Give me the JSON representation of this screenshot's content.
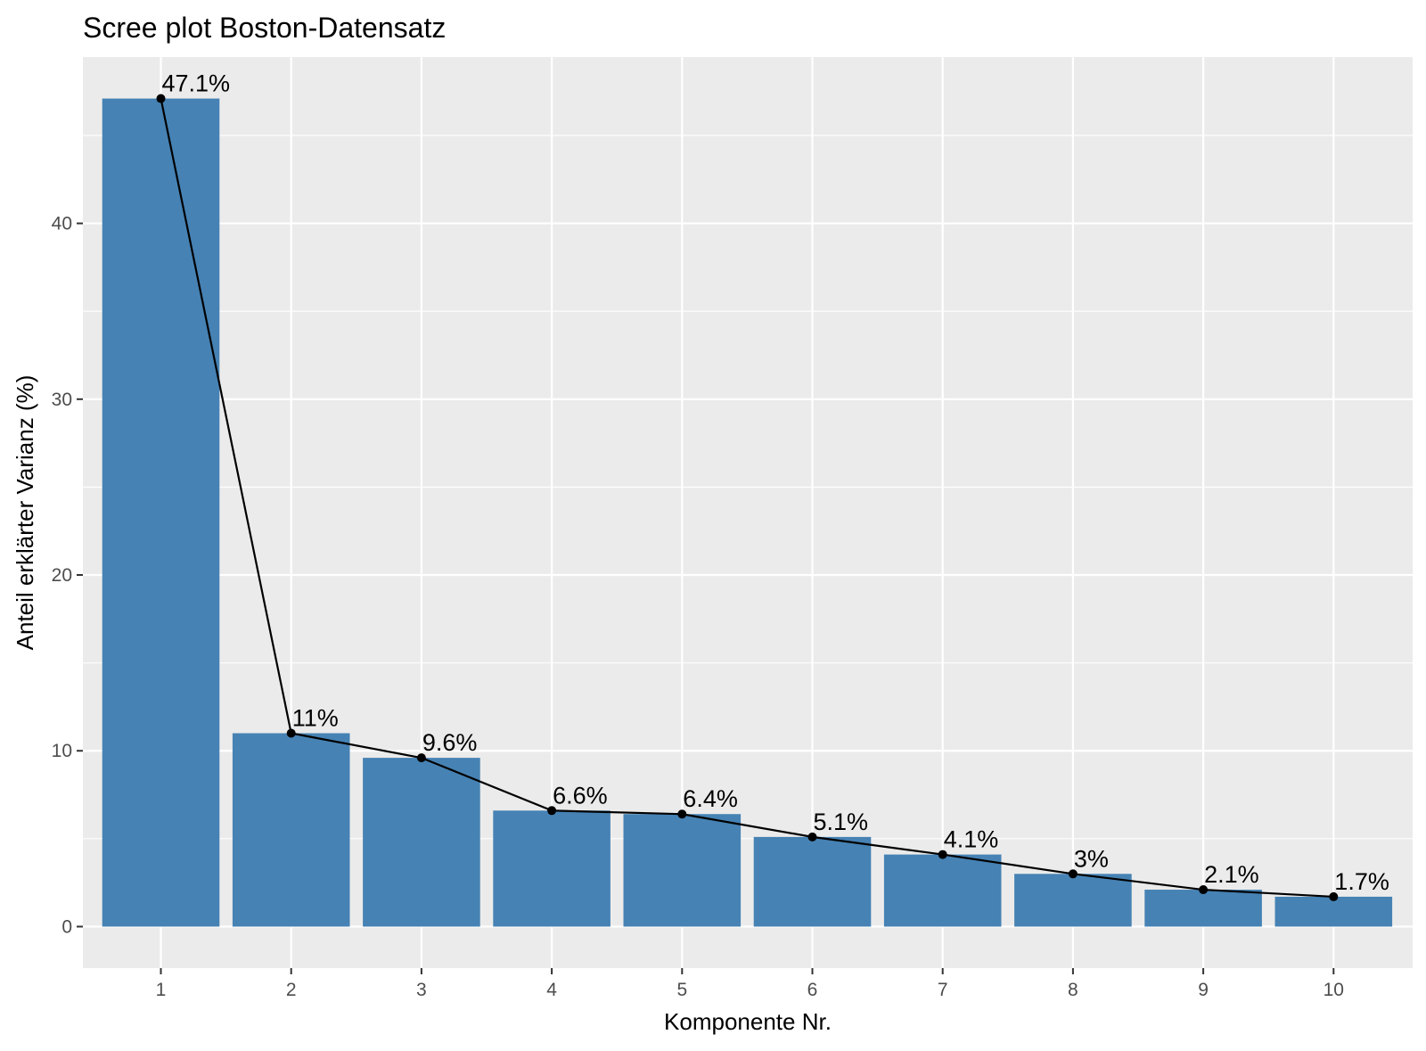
{
  "chart_data": {
    "type": "bar",
    "title": "Scree plot Boston-Datensatz",
    "xlabel": "Komponente Nr.",
    "ylabel": "Anteil erklärter Varianz (%)",
    "categories": [
      "1",
      "2",
      "3",
      "4",
      "5",
      "6",
      "7",
      "8",
      "9",
      "10"
    ],
    "values": [
      47.1,
      11.0,
      9.6,
      6.6,
      6.4,
      5.1,
      4.1,
      3.0,
      2.1,
      1.7
    ],
    "data_labels": [
      "47.1%",
      "11%",
      "9.6%",
      "6.6%",
      "6.4%",
      "5.1%",
      "4.1%",
      "3%",
      "2.1%",
      "1.7%"
    ],
    "y_ticks": [
      "0",
      "10",
      "20",
      "30",
      "40"
    ],
    "ylim": [
      -2.36,
      49.46
    ],
    "overlay": "line-with-points",
    "grid": true,
    "colors": {
      "bar": "#4682B4",
      "line": "#000000",
      "panel": "#EBEBEB",
      "grid": "#FFFFFF"
    }
  }
}
